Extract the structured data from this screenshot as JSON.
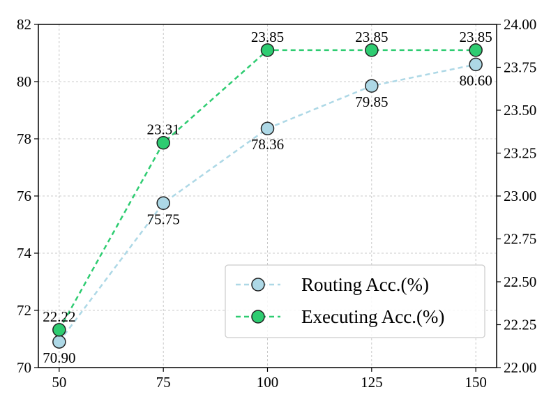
{
  "chart_data": {
    "type": "line",
    "x": [
      50,
      75,
      100,
      125,
      150
    ],
    "xticks": [
      "50",
      "75",
      "100",
      "125",
      "150"
    ],
    "xlim": [
      45,
      155
    ],
    "ylim_left": [
      70,
      82
    ],
    "yticks_left": [
      "70",
      "72",
      "74",
      "76",
      "78",
      "80",
      "82"
    ],
    "ylim_right": [
      22.0,
      24.0
    ],
    "yticks_right": [
      "22.00",
      "22.25",
      "22.50",
      "22.75",
      "23.00",
      "23.25",
      "23.50",
      "23.75",
      "24.00"
    ],
    "grid": true,
    "legend_position": "lower-right",
    "series": [
      {
        "name": "Routing Acc.(%)",
        "axis": "left",
        "color": "#add8e6",
        "values": [
          70.9,
          75.75,
          78.36,
          79.85,
          80.6
        ],
        "labels": [
          "70.90",
          "75.75",
          "78.36",
          "79.85",
          "80.60"
        ]
      },
      {
        "name": "Executing Acc.(%)",
        "axis": "right",
        "color": "#2ecc71",
        "values": [
          22.22,
          23.31,
          23.85,
          23.85,
          23.85
        ],
        "labels": [
          "22.22",
          "23.31",
          "23.85",
          "23.85",
          "23.85"
        ]
      }
    ]
  }
}
